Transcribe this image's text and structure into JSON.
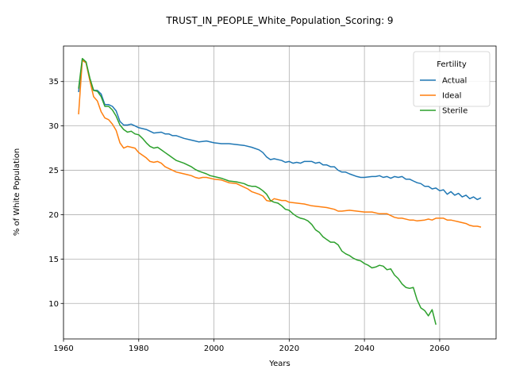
{
  "chart_data": {
    "type": "line",
    "title": "TRUST_IN_PEOPLE_White_Population_Scoring: 9",
    "xlabel": "Years",
    "ylabel": "% of White Population",
    "xlim": [
      1960,
      2075
    ],
    "ylim": [
      6,
      39
    ],
    "xticks": [
      1960,
      1980,
      2000,
      2020,
      2040,
      2060
    ],
    "yticks": [
      10,
      15,
      20,
      25,
      30,
      35
    ],
    "grid": true,
    "legend": {
      "title": "Fertility",
      "placement": "top-right"
    },
    "series": [
      {
        "name": "Actual",
        "color": "#1f77b4",
        "points": [
          [
            1964,
            33.8
          ],
          [
            1965,
            37.5
          ],
          [
            1966,
            37.2
          ],
          [
            1967,
            35.2
          ],
          [
            1968,
            34.0
          ],
          [
            1969,
            34.0
          ],
          [
            1970,
            33.6
          ],
          [
            1971,
            32.4
          ],
          [
            1972,
            32.4
          ],
          [
            1973,
            32.2
          ],
          [
            1974,
            31.7
          ],
          [
            1975,
            30.5
          ],
          [
            1976,
            30.1
          ],
          [
            1977,
            30.1
          ],
          [
            1978,
            30.2
          ],
          [
            1979,
            30.0
          ],
          [
            1980,
            29.8
          ],
          [
            1982,
            29.6
          ],
          [
            1984,
            29.2
          ],
          [
            1986,
            29.3
          ],
          [
            1987,
            29.1
          ],
          [
            1988,
            29.1
          ],
          [
            1989,
            28.9
          ],
          [
            1990,
            28.9
          ],
          [
            1992,
            28.6
          ],
          [
            1994,
            28.4
          ],
          [
            1995,
            28.3
          ],
          [
            1996,
            28.2
          ],
          [
            1998,
            28.3
          ],
          [
            2000,
            28.1
          ],
          [
            2002,
            28.0
          ],
          [
            2004,
            28.0
          ],
          [
            2006,
            27.9
          ],
          [
            2008,
            27.8
          ],
          [
            2010,
            27.6
          ],
          [
            2012,
            27.3
          ],
          [
            2013,
            27.0
          ],
          [
            2014,
            26.5
          ],
          [
            2015,
            26.2
          ],
          [
            2016,
            26.3
          ],
          [
            2018,
            26.1
          ],
          [
            2019,
            25.9
          ],
          [
            2020,
            26.0
          ],
          [
            2021,
            25.8
          ],
          [
            2022,
            25.9
          ],
          [
            2023,
            25.8
          ],
          [
            2024,
            26.0
          ],
          [
            2026,
            26.0
          ],
          [
            2027,
            25.8
          ],
          [
            2028,
            25.9
          ],
          [
            2029,
            25.6
          ],
          [
            2030,
            25.6
          ],
          [
            2031,
            25.4
          ],
          [
            2032,
            25.4
          ],
          [
            2033,
            25.0
          ],
          [
            2034,
            24.8
          ],
          [
            2035,
            24.8
          ],
          [
            2036,
            24.6
          ],
          [
            2038,
            24.3
          ],
          [
            2039,
            24.2
          ],
          [
            2040,
            24.2
          ],
          [
            2042,
            24.3
          ],
          [
            2043,
            24.3
          ],
          [
            2044,
            24.4
          ],
          [
            2045,
            24.2
          ],
          [
            2046,
            24.3
          ],
          [
            2047,
            24.1
          ],
          [
            2048,
            24.3
          ],
          [
            2049,
            24.2
          ],
          [
            2050,
            24.3
          ],
          [
            2051,
            24.0
          ],
          [
            2052,
            24.0
          ],
          [
            2053,
            23.8
          ],
          [
            2054,
            23.6
          ],
          [
            2055,
            23.5
          ],
          [
            2056,
            23.2
          ],
          [
            2057,
            23.2
          ],
          [
            2058,
            22.9
          ],
          [
            2059,
            23.0
          ],
          [
            2060,
            22.7
          ],
          [
            2061,
            22.8
          ],
          [
            2062,
            22.3
          ],
          [
            2063,
            22.6
          ],
          [
            2064,
            22.2
          ],
          [
            2065,
            22.4
          ],
          [
            2066,
            22.0
          ],
          [
            2067,
            22.2
          ],
          [
            2068,
            21.8
          ],
          [
            2069,
            22.0
          ],
          [
            2070,
            21.7
          ],
          [
            2071,
            21.9
          ]
        ]
      },
      {
        "name": "Ideal",
        "color": "#ff7f0e",
        "points": [
          [
            1964,
            31.3
          ],
          [
            1965,
            37.4
          ],
          [
            1966,
            37.1
          ],
          [
            1967,
            35.1
          ],
          [
            1968,
            33.3
          ],
          [
            1969,
            32.8
          ],
          [
            1970,
            31.6
          ],
          [
            1971,
            30.9
          ],
          [
            1972,
            30.7
          ],
          [
            1973,
            30.2
          ],
          [
            1974,
            29.5
          ],
          [
            1975,
            28.1
          ],
          [
            1976,
            27.5
          ],
          [
            1977,
            27.7
          ],
          [
            1978,
            27.6
          ],
          [
            1979,
            27.5
          ],
          [
            1980,
            27.0
          ],
          [
            1982,
            26.4
          ],
          [
            1983,
            26.0
          ],
          [
            1984,
            25.9
          ],
          [
            1985,
            26.0
          ],
          [
            1986,
            25.8
          ],
          [
            1987,
            25.4
          ],
          [
            1988,
            25.2
          ],
          [
            1990,
            24.8
          ],
          [
            1991,
            24.7
          ],
          [
            1992,
            24.6
          ],
          [
            1993,
            24.5
          ],
          [
            1994,
            24.4
          ],
          [
            1995,
            24.2
          ],
          [
            1996,
            24.1
          ],
          [
            1997,
            24.2
          ],
          [
            1998,
            24.2
          ],
          [
            2000,
            24.0
          ],
          [
            2002,
            23.9
          ],
          [
            2004,
            23.6
          ],
          [
            2006,
            23.5
          ],
          [
            2008,
            23.1
          ],
          [
            2009,
            22.9
          ],
          [
            2010,
            22.6
          ],
          [
            2012,
            22.3
          ],
          [
            2013,
            22.1
          ],
          [
            2014,
            21.6
          ],
          [
            2015,
            21.5
          ],
          [
            2016,
            21.8
          ],
          [
            2018,
            21.6
          ],
          [
            2019,
            21.6
          ],
          [
            2020,
            21.4
          ],
          [
            2022,
            21.3
          ],
          [
            2024,
            21.2
          ],
          [
            2026,
            21.0
          ],
          [
            2028,
            20.9
          ],
          [
            2030,
            20.8
          ],
          [
            2032,
            20.6
          ],
          [
            2033,
            20.4
          ],
          [
            2034,
            20.4
          ],
          [
            2036,
            20.5
          ],
          [
            2038,
            20.4
          ],
          [
            2040,
            20.3
          ],
          [
            2041,
            20.3
          ],
          [
            2042,
            20.3
          ],
          [
            2044,
            20.1
          ],
          [
            2046,
            20.1
          ],
          [
            2048,
            19.7
          ],
          [
            2049,
            19.6
          ],
          [
            2050,
            19.6
          ],
          [
            2052,
            19.4
          ],
          [
            2053,
            19.4
          ],
          [
            2054,
            19.3
          ],
          [
            2056,
            19.4
          ],
          [
            2057,
            19.5
          ],
          [
            2058,
            19.4
          ],
          [
            2059,
            19.6
          ],
          [
            2060,
            19.6
          ],
          [
            2061,
            19.6
          ],
          [
            2062,
            19.4
          ],
          [
            2063,
            19.4
          ],
          [
            2064,
            19.3
          ],
          [
            2065,
            19.2
          ],
          [
            2066,
            19.1
          ],
          [
            2067,
            19.0
          ],
          [
            2068,
            18.8
          ],
          [
            2069,
            18.7
          ],
          [
            2070,
            18.7
          ],
          [
            2071,
            18.6
          ]
        ]
      },
      {
        "name": "Sterile",
        "color": "#2ca02c",
        "points": [
          [
            1964,
            34.2
          ],
          [
            1965,
            37.6
          ],
          [
            1966,
            37.2
          ],
          [
            1967,
            35.4
          ],
          [
            1968,
            34.0
          ],
          [
            1969,
            33.9
          ],
          [
            1970,
            33.3
          ],
          [
            1971,
            32.2
          ],
          [
            1972,
            32.2
          ],
          [
            1973,
            31.8
          ],
          [
            1974,
            31.1
          ],
          [
            1975,
            30.1
          ],
          [
            1976,
            29.6
          ],
          [
            1977,
            29.3
          ],
          [
            1978,
            29.4
          ],
          [
            1979,
            29.1
          ],
          [
            1980,
            29.0
          ],
          [
            1981,
            28.6
          ],
          [
            1982,
            28.1
          ],
          [
            1983,
            27.7
          ],
          [
            1984,
            27.5
          ],
          [
            1985,
            27.6
          ],
          [
            1986,
            27.3
          ],
          [
            1987,
            27.0
          ],
          [
            1988,
            26.7
          ],
          [
            1989,
            26.4
          ],
          [
            1990,
            26.1
          ],
          [
            1992,
            25.8
          ],
          [
            1994,
            25.4
          ],
          [
            1995,
            25.1
          ],
          [
            1996,
            24.9
          ],
          [
            1998,
            24.6
          ],
          [
            1999,
            24.4
          ],
          [
            2000,
            24.3
          ],
          [
            2002,
            24.1
          ],
          [
            2004,
            23.8
          ],
          [
            2006,
            23.7
          ],
          [
            2008,
            23.5
          ],
          [
            2009,
            23.3
          ],
          [
            2010,
            23.2
          ],
          [
            2011,
            23.2
          ],
          [
            2012,
            23.0
          ],
          [
            2013,
            22.7
          ],
          [
            2014,
            22.3
          ],
          [
            2015,
            21.6
          ],
          [
            2016,
            21.4
          ],
          [
            2017,
            21.3
          ],
          [
            2018,
            21.0
          ],
          [
            2019,
            20.6
          ],
          [
            2020,
            20.5
          ],
          [
            2021,
            20.1
          ],
          [
            2022,
            19.8
          ],
          [
            2023,
            19.6
          ],
          [
            2024,
            19.5
          ],
          [
            2025,
            19.3
          ],
          [
            2026,
            18.9
          ],
          [
            2027,
            18.3
          ],
          [
            2028,
            18.0
          ],
          [
            2029,
            17.5
          ],
          [
            2030,
            17.2
          ],
          [
            2031,
            16.9
          ],
          [
            2032,
            16.9
          ],
          [
            2033,
            16.6
          ],
          [
            2034,
            15.9
          ],
          [
            2035,
            15.6
          ],
          [
            2036,
            15.4
          ],
          [
            2037,
            15.1
          ],
          [
            2038,
            14.9
          ],
          [
            2039,
            14.8
          ],
          [
            2040,
            14.5
          ],
          [
            2041,
            14.3
          ],
          [
            2042,
            14.0
          ],
          [
            2043,
            14.1
          ],
          [
            2044,
            14.3
          ],
          [
            2045,
            14.2
          ],
          [
            2046,
            13.8
          ],
          [
            2047,
            13.9
          ],
          [
            2048,
            13.2
          ],
          [
            2049,
            12.8
          ],
          [
            2050,
            12.2
          ],
          [
            2051,
            11.8
          ],
          [
            2052,
            11.7
          ],
          [
            2053,
            11.8
          ],
          [
            2054,
            10.4
          ],
          [
            2055,
            9.5
          ],
          [
            2056,
            9.2
          ],
          [
            2057,
            8.6
          ],
          [
            2058,
            9.3
          ],
          [
            2059,
            7.6
          ]
        ]
      }
    ]
  }
}
